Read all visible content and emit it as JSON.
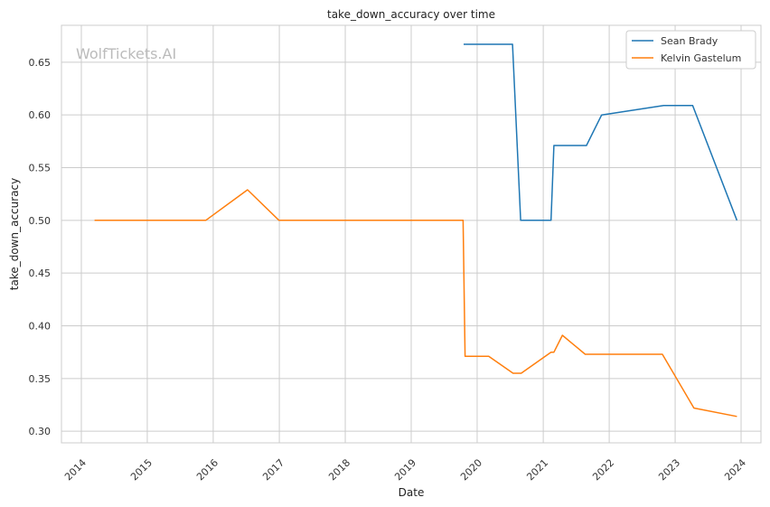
{
  "chart_data": {
    "type": "line",
    "title": "take_down_accuracy over time",
    "xlabel": "Date",
    "ylabel": "take_down_accuracy",
    "watermark": "WolfTickets.AI",
    "x_ticks": [
      "2014",
      "2015",
      "2016",
      "2017",
      "2018",
      "2019",
      "2020",
      "2021",
      "2022",
      "2023",
      "2024"
    ],
    "y_ticks": [
      "0.30",
      "0.35",
      "0.40",
      "0.45",
      "0.50",
      "0.55",
      "0.60",
      "0.65"
    ],
    "xlim": [
      "2013-09-13",
      "2024-04-20"
    ],
    "ylim": [
      0.289,
      0.685
    ],
    "grid": true,
    "legend_position": "top-right",
    "series": [
      {
        "name": "Sean Brady",
        "color": "#1f77b4",
        "points": [
          [
            "2019-10-18",
            0.667
          ],
          [
            "2020-07-15",
            0.667
          ],
          [
            "2020-08-29",
            0.5
          ],
          [
            "2021-02-13",
            0.5
          ],
          [
            "2021-03-01",
            0.571
          ],
          [
            "2021-08-28",
            0.571
          ],
          [
            "2021-11-20",
            0.6
          ],
          [
            "2022-10-29",
            0.609
          ],
          [
            "2023-04-08",
            0.609
          ],
          [
            "2023-12-09",
            0.5
          ]
        ]
      },
      {
        "name": "Kelvin Gastelum",
        "color": "#ff7f0e",
        "points": [
          [
            "2014-03-15",
            0.5
          ],
          [
            "2015-11-21",
            0.5
          ],
          [
            "2016-07-09",
            0.529
          ],
          [
            "2016-12-30",
            0.5
          ],
          [
            "2019-10-15",
            0.5
          ],
          [
            "2019-10-26",
            0.371
          ],
          [
            "2020-03-05",
            0.371
          ],
          [
            "2020-07-18",
            0.355
          ],
          [
            "2020-09-01",
            0.355
          ],
          [
            "2021-02-13",
            0.375
          ],
          [
            "2021-03-01",
            0.375
          ],
          [
            "2021-04-17",
            0.391
          ],
          [
            "2021-08-21",
            0.373
          ],
          [
            "2022-10-22",
            0.373
          ],
          [
            "2023-04-15",
            0.322
          ],
          [
            "2023-12-09",
            0.314
          ]
        ]
      }
    ]
  }
}
